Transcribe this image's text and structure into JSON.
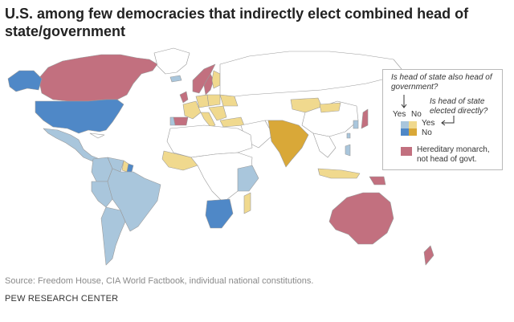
{
  "title": "U.S. among few democracies that indirectly elect combined head of state/government",
  "legend": {
    "question1": "Is head of state also head of government?",
    "question2": "Is head of state elected directly?",
    "col_yes": "Yes",
    "col_no": "No",
    "row_yes": "Yes",
    "row_no": "No",
    "monarch_label": "Hereditary monarch, not head of govt."
  },
  "colors": {
    "headgov_direct": "#a9c6dc",
    "headgov_indirect": "#4f88c7",
    "nothead_direct": "#f0d98e",
    "nothead_indirect": "#d9a838",
    "monarch": "#c2707f",
    "other": "#ffffff",
    "border": "#9a9a9a"
  },
  "source": "Source: Freedom House, CIA World Factbook, individual national constitutions.",
  "organization": "PEW RESEARCH CENTER"
}
